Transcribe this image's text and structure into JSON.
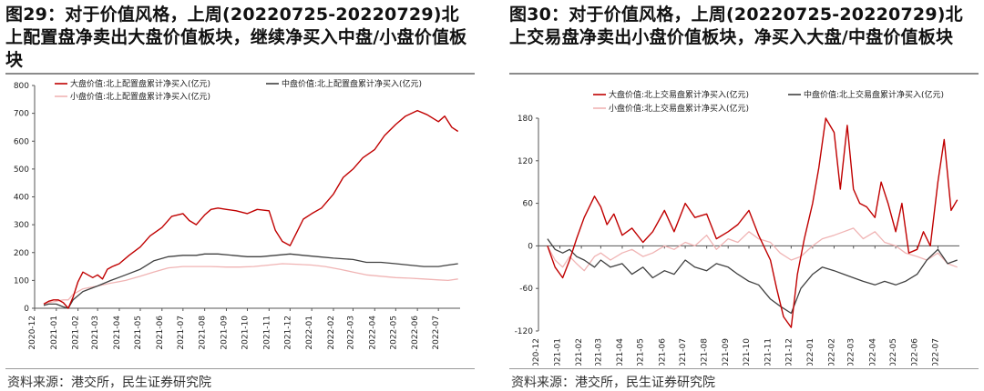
{
  "panels": [
    {
      "title": "图29：对于价值风格，上周(20220725-20220729)北上配置盘净卖出大盘价值板块，继续净买入中盘/小盘价值板块",
      "source": "资料来源：港交所，民生证券研究院",
      "chart_data": {
        "type": "line",
        "title": "",
        "xlabel": "",
        "ylabel": "",
        "ylim": [
          0,
          800
        ],
        "yticks": [
          0,
          100,
          200,
          300,
          400,
          500,
          600,
          700,
          800
        ],
        "x_ticks": [
          "2020-12",
          "2021-01",
          "2021-02",
          "2021-03",
          "2021-04",
          "2021-05",
          "2021-06",
          "2021-07",
          "2021-08",
          "2021-09",
          "2021-10",
          "2021-11",
          "2021-12",
          "2022-01",
          "2022-02",
          "2022-03",
          "2022-04",
          "2022-05",
          "2022-06",
          "2022-07"
        ],
        "legend_position": "top",
        "grid": false,
        "colors": {
          "large": "#c00000",
          "mid": "#404040",
          "small": "#f0b4b4"
        },
        "series": [
          {
            "name": "大盘价值:北上配置盘累计净买入(亿元)",
            "color": "#c00000",
            "key": "large",
            "x": [
              "2020-12-14",
              "2020-12-21",
              "2020-12-28",
              "2021-01-04",
              "2021-01-11",
              "2021-01-18",
              "2021-01-25",
              "2021-02-01",
              "2021-02-08",
              "2021-02-22",
              "2021-03-01",
              "2021-03-08",
              "2021-03-15",
              "2021-03-22",
              "2021-04-01",
              "2021-04-15",
              "2021-05-01",
              "2021-05-15",
              "2021-06-01",
              "2021-06-15",
              "2021-07-01",
              "2021-07-10",
              "2021-07-20",
              "2021-08-01",
              "2021-08-10",
              "2021-08-20",
              "2021-09-01",
              "2021-09-15",
              "2021-10-01",
              "2021-10-15",
              "2021-11-01",
              "2021-11-10",
              "2021-11-20",
              "2021-12-01",
              "2021-12-10",
              "2021-12-20",
              "2022-01-01",
              "2022-01-15",
              "2022-02-01",
              "2022-02-15",
              "2022-03-01",
              "2022-03-15",
              "2022-04-01",
              "2022-04-15",
              "2022-05-01",
              "2022-05-15",
              "2022-06-01",
              "2022-06-15",
              "2022-07-01",
              "2022-07-10",
              "2022-07-20",
              "2022-07-29"
            ],
            "y": [
              15,
              25,
              30,
              30,
              20,
              0,
              40,
              95,
              130,
              110,
              120,
              105,
              140,
              150,
              160,
              190,
              220,
              260,
              290,
              330,
              340,
              315,
              300,
              335,
              355,
              360,
              355,
              350,
              340,
              355,
              350,
              280,
              240,
              225,
              270,
              320,
              340,
              360,
              410,
              470,
              500,
              540,
              570,
              620,
              660,
              690,
              710,
              695,
              670,
              690,
              650,
              635
            ]
          },
          {
            "name": "中盘价值:北上配置盘累计净买入(亿元)",
            "color": "#404040",
            "key": "mid",
            "x": [
              "2020-12-14",
              "2020-12-21",
              "2021-01-01",
              "2021-01-11",
              "2021-01-18",
              "2021-01-25",
              "2021-02-08",
              "2021-03-01",
              "2021-03-20",
              "2021-04-10",
              "2021-05-01",
              "2021-05-20",
              "2021-06-10",
              "2021-07-01",
              "2021-07-20",
              "2021-08-01",
              "2021-08-20",
              "2021-09-10",
              "2021-10-01",
              "2021-10-20",
              "2021-11-10",
              "2021-12-01",
              "2021-12-20",
              "2022-01-10",
              "2022-02-01",
              "2022-03-01",
              "2022-03-20",
              "2022-04-10",
              "2022-05-01",
              "2022-05-20",
              "2022-06-10",
              "2022-07-01",
              "2022-07-15",
              "2022-07-29"
            ],
            "y": [
              10,
              15,
              15,
              5,
              0,
              30,
              60,
              80,
              100,
              120,
              140,
              170,
              185,
              190,
              190,
              195,
              195,
              190,
              185,
              185,
              190,
              195,
              190,
              185,
              180,
              175,
              165,
              165,
              160,
              155,
              150,
              150,
              155,
              160
            ]
          },
          {
            "name": "小盘价值:北上配置盘累计净买入(亿元)",
            "color": "#f0b4b4",
            "key": "small",
            "x": [
              "2020-12-14",
              "2020-12-21",
              "2021-01-01",
              "2021-01-11",
              "2021-01-18",
              "2021-01-25",
              "2021-02-08",
              "2021-03-01",
              "2021-03-20",
              "2021-04-10",
              "2021-05-01",
              "2021-05-20",
              "2021-06-10",
              "2021-07-01",
              "2021-07-20",
              "2021-08-10",
              "2021-09-01",
              "2021-09-20",
              "2021-10-10",
              "2021-11-01",
              "2021-11-20",
              "2021-12-10",
              "2022-01-01",
              "2022-01-20",
              "2022-02-10",
              "2022-03-01",
              "2022-03-20",
              "2022-04-10",
              "2022-05-01",
              "2022-05-20",
              "2022-06-10",
              "2022-07-01",
              "2022-07-15",
              "2022-07-29"
            ],
            "y": [
              15,
              20,
              25,
              30,
              30,
              50,
              70,
              80,
              90,
              100,
              115,
              130,
              145,
              150,
              150,
              150,
              148,
              148,
              150,
              155,
              160,
              158,
              155,
              150,
              140,
              130,
              120,
              115,
              110,
              108,
              105,
              102,
              100,
              105
            ]
          }
        ]
      }
    },
    {
      "title": "图30：对于价值风格，上周(20220725-20220729)北上交易盘净卖出小盘价值板块，净买入大盘/中盘价值板块",
      "source": "资料来源：港交所，民生证券研究院",
      "chart_data": {
        "type": "line",
        "title": "",
        "xlabel": "",
        "ylabel": "",
        "ylim": [
          -120,
          180
        ],
        "yticks": [
          -120,
          -60,
          0,
          60,
          120,
          180
        ],
        "x_ticks": [
          "2020-12",
          "2021-01",
          "2021-02",
          "2021-03",
          "2021-04",
          "2021-05",
          "2021-06",
          "2021-07",
          "2021-08",
          "2021-09",
          "2021-10",
          "2021-11",
          "2021-12",
          "2022-01",
          "2022-02",
          "2022-03",
          "2022-04",
          "2022-05",
          "2022-06",
          "2022-07"
        ],
        "legend_position": "top",
        "grid": false,
        "colors": {
          "large": "#c00000",
          "mid": "#404040",
          "small": "#f0b4b4"
        },
        "series": [
          {
            "name": "大盘价值:北上交易盘累计净买入(亿元)",
            "color": "#c00000",
            "key": "large",
            "x": [
              "2020-12-14",
              "2020-12-25",
              "2021-01-05",
              "2021-01-15",
              "2021-01-25",
              "2021-02-05",
              "2021-02-20",
              "2021-03-01",
              "2021-03-10",
              "2021-03-20",
              "2021-04-01",
              "2021-04-15",
              "2021-05-01",
              "2021-05-15",
              "2021-06-01",
              "2021-06-15",
              "2021-07-01",
              "2021-07-15",
              "2021-08-01",
              "2021-08-15",
              "2021-09-01",
              "2021-09-15",
              "2021-10-01",
              "2021-10-15",
              "2021-11-01",
              "2021-11-10",
              "2021-11-20",
              "2021-12-01",
              "2021-12-10",
              "2021-12-20",
              "2022-01-01",
              "2022-01-10",
              "2022-01-20",
              "2022-02-01",
              "2022-02-10",
              "2022-02-20",
              "2022-03-01",
              "2022-03-10",
              "2022-03-20",
              "2022-04-01",
              "2022-04-10",
              "2022-04-20",
              "2022-05-01",
              "2022-05-10",
              "2022-05-20",
              "2022-06-01",
              "2022-06-10",
              "2022-06-20",
              "2022-07-01",
              "2022-07-10",
              "2022-07-20",
              "2022-07-29"
            ],
            "y": [
              0,
              -30,
              -45,
              -20,
              10,
              40,
              70,
              55,
              30,
              45,
              15,
              25,
              5,
              20,
              50,
              20,
              60,
              40,
              45,
              10,
              20,
              30,
              50,
              15,
              -20,
              -60,
              -100,
              -115,
              -40,
              10,
              60,
              110,
              180,
              160,
              80,
              170,
              80,
              60,
              55,
              40,
              90,
              60,
              20,
              60,
              -10,
              -5,
              20,
              0,
              90,
              150,
              50,
              65
            ]
          },
          {
            "name": "中盘价值:北上交易盘累计净买入(亿元)",
            "color": "#404040",
            "key": "mid",
            "x": [
              "2020-12-14",
              "2020-12-25",
              "2021-01-05",
              "2021-01-15",
              "2021-01-25",
              "2021-02-05",
              "2021-02-20",
              "2021-03-01",
              "2021-03-15",
              "2021-04-01",
              "2021-04-15",
              "2021-05-01",
              "2021-05-15",
              "2021-06-01",
              "2021-06-15",
              "2021-07-01",
              "2021-07-15",
              "2021-08-01",
              "2021-08-15",
              "2021-09-01",
              "2021-09-15",
              "2021-10-01",
              "2021-10-15",
              "2021-11-01",
              "2021-11-15",
              "2021-12-01",
              "2021-12-15",
              "2022-01-01",
              "2022-01-15",
              "2022-02-01",
              "2022-02-15",
              "2022-03-01",
              "2022-03-15",
              "2022-04-01",
              "2022-04-15",
              "2022-05-01",
              "2022-05-15",
              "2022-06-01",
              "2022-06-15",
              "2022-07-01",
              "2022-07-15",
              "2022-07-29"
            ],
            "y": [
              10,
              -5,
              -10,
              -5,
              -15,
              -20,
              -30,
              -20,
              -30,
              -25,
              -40,
              -30,
              -45,
              -35,
              -40,
              -20,
              -30,
              -35,
              -25,
              -30,
              -40,
              -50,
              -55,
              -75,
              -85,
              -95,
              -60,
              -40,
              -30,
              -35,
              -40,
              -45,
              -50,
              -55,
              -50,
              -55,
              -50,
              -40,
              -20,
              -5,
              -25,
              -20
            ]
          },
          {
            "name": "小盘价值:北上交易盘累计净买入(亿元)",
            "color": "#f0b4b4",
            "key": "small",
            "x": [
              "2020-12-14",
              "2020-12-25",
              "2021-01-05",
              "2021-01-15",
              "2021-01-25",
              "2021-02-05",
              "2021-02-20",
              "2021-03-01",
              "2021-03-15",
              "2021-04-01",
              "2021-04-15",
              "2021-05-01",
              "2021-05-15",
              "2021-06-01",
              "2021-06-15",
              "2021-07-01",
              "2021-07-15",
              "2021-08-01",
              "2021-08-15",
              "2021-09-01",
              "2021-09-15",
              "2021-10-01",
              "2021-10-15",
              "2021-11-01",
              "2021-11-15",
              "2021-12-01",
              "2021-12-15",
              "2022-01-01",
              "2022-01-15",
              "2022-02-01",
              "2022-02-15",
              "2022-03-01",
              "2022-03-15",
              "2022-04-01",
              "2022-04-15",
              "2022-05-01",
              "2022-05-15",
              "2022-06-01",
              "2022-06-15",
              "2022-07-01",
              "2022-07-15",
              "2022-07-29"
            ],
            "y": [
              0,
              -20,
              -30,
              -15,
              -25,
              -35,
              -15,
              -10,
              -20,
              -10,
              -5,
              -15,
              -10,
              0,
              -5,
              5,
              0,
              15,
              -5,
              10,
              5,
              20,
              10,
              5,
              -10,
              -20,
              -15,
              0,
              10,
              15,
              20,
              25,
              10,
              20,
              5,
              0,
              -10,
              -15,
              -20,
              -10,
              -25,
              -30
            ]
          }
        ]
      }
    }
  ]
}
